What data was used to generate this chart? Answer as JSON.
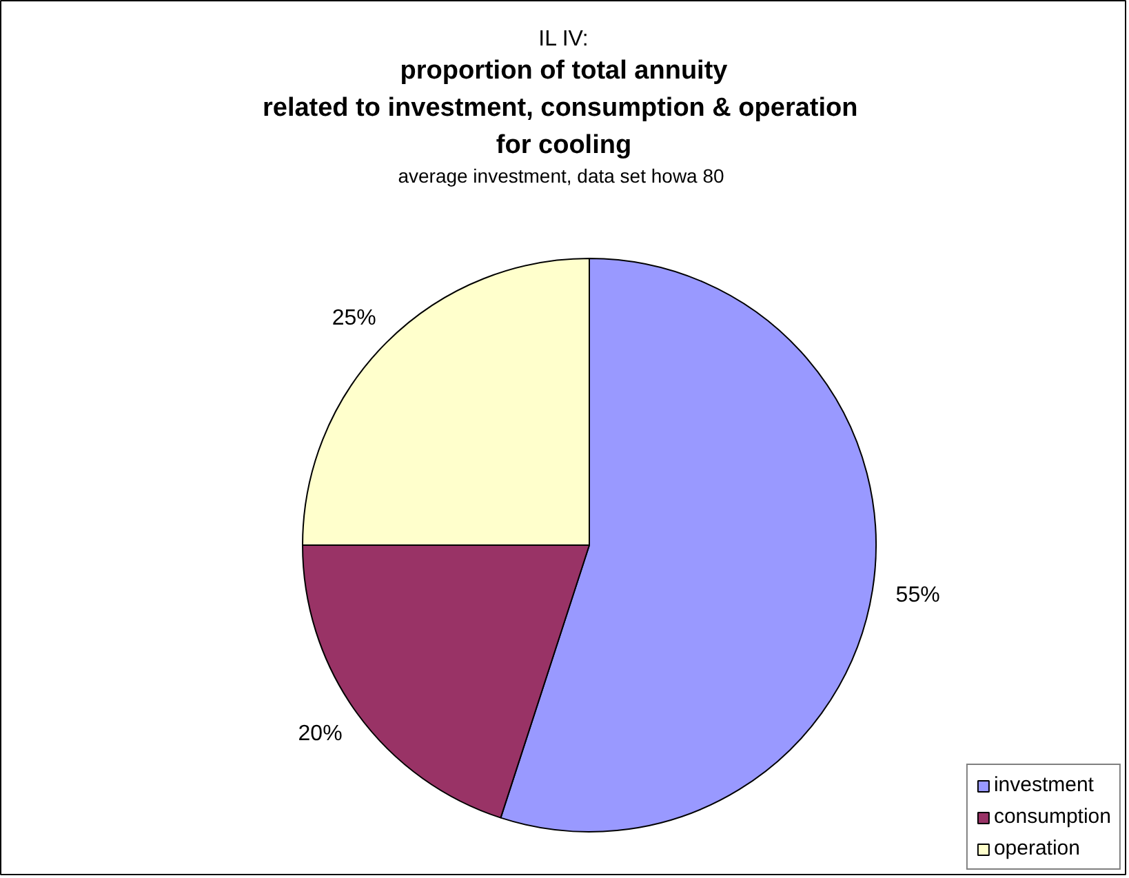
{
  "chart_data": {
    "type": "pie",
    "annotations": [
      "IL IV:"
    ],
    "title": "proportion of total annuity\nrelated to  investment, consumption & operation\nfor cooling",
    "subtitle": "average investment, data set howa 80",
    "categories": [
      "investment",
      "consumption",
      "operation"
    ],
    "values": [
      55,
      20,
      25
    ],
    "colors": [
      "#9999ff",
      "#993366",
      "#ffffcc"
    ],
    "value_labels": [
      "55%",
      "20%",
      "25%"
    ],
    "legend": "bottom right"
  }
}
